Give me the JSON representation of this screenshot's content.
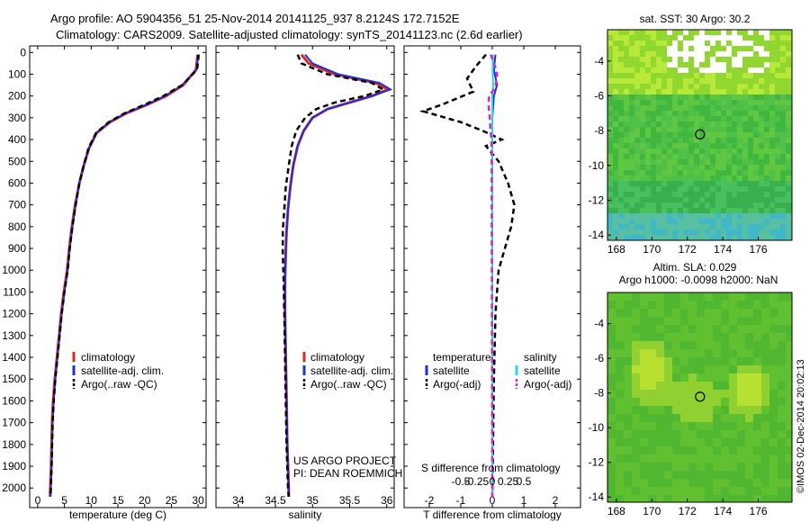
{
  "header": {
    "line1": "Argo profile: AO 5904356_51 25-Nov-2014 20141125_937 8.2124S 172.7152E",
    "line2": "Climatology: CARS2009. Satellite-adjusted climatology: synTS_20141123.nc (2.6d earlier)"
  },
  "colors": {
    "climatology": "#e8241c",
    "satellite": "#1830e0",
    "argo": "#000000",
    "sat_diff_s": "#20d8e8",
    "argo_diff_s": "#e020d0"
  },
  "chart_data": [
    {
      "type": "line",
      "name": "temperature-profile",
      "xlabel": "temperature (deg C)",
      "ylabel": "",
      "xlim": [
        -1.5,
        31.5
      ],
      "ylim": [
        2080,
        0
      ],
      "xticks": [
        "0",
        "5",
        "10",
        "15",
        "20",
        "25",
        "30"
      ],
      "yticks": [
        "0",
        "100",
        "200",
        "300",
        "400",
        "500",
        "600",
        "700",
        "800",
        "900",
        "1000",
        "1100",
        "1200",
        "1300",
        "1400",
        "1500",
        "1600",
        "1700",
        "1800",
        "1900",
        "2000"
      ],
      "series": [
        {
          "name": "climatology",
          "x": [
            29.9,
            29.8,
            29.6,
            27.2,
            24.0,
            20.5,
            16.5,
            13.5,
            11.0,
            9.6,
            8.6,
            7.8,
            7.0,
            6.4,
            5.9,
            5.5,
            4.9,
            4.4,
            4.0,
            3.6,
            3.2,
            2.9,
            2.7,
            2.6,
            2.5,
            2.3
          ],
          "y": [
            10,
            40,
            80,
            150,
            200,
            240,
            280,
            320,
            370,
            440,
            520,
            600,
            700,
            800,
            900,
            1000,
            1100,
            1200,
            1300,
            1400,
            1500,
            1600,
            1700,
            1800,
            1900,
            2040
          ]
        },
        {
          "name": "satellite-adj. clim.",
          "x": [
            30.0,
            29.9,
            29.7,
            27.0,
            23.8,
            20.3,
            16.4,
            13.4,
            11.0,
            9.6,
            8.6,
            7.8,
            7.1,
            6.5,
            6.0,
            5.6,
            5.0,
            4.5,
            4.1,
            3.7,
            3.3,
            3.0,
            2.8,
            2.7,
            2.6,
            2.4
          ],
          "y": [
            10,
            40,
            80,
            150,
            200,
            240,
            280,
            320,
            370,
            440,
            520,
            600,
            700,
            800,
            900,
            1000,
            1100,
            1200,
            1300,
            1400,
            1500,
            1600,
            1700,
            1800,
            1900,
            2040
          ]
        },
        {
          "name": "Argo(..raw -QC)",
          "x": [
            30.1,
            30.0,
            29.8,
            27.0,
            23.5,
            20.0,
            16.2,
            13.3,
            10.9,
            9.5,
            8.6,
            7.8,
            7.1,
            6.5,
            6.0,
            5.6,
            5.0,
            4.5,
            4.1,
            3.7,
            3.3,
            3.0,
            2.8,
            2.7,
            2.6,
            2.4
          ],
          "y": [
            10,
            40,
            80,
            150,
            200,
            240,
            280,
            320,
            370,
            440,
            520,
            600,
            700,
            800,
            900,
            1000,
            1100,
            1200,
            1300,
            1400,
            1500,
            1600,
            1700,
            1800,
            1900,
            2040
          ]
        }
      ],
      "legend": [
        "climatology",
        "satellite-adj. clim.",
        "Argo(..raw -QC)"
      ]
    },
    {
      "type": "line",
      "name": "salinity-profile",
      "xlabel": "salinity",
      "xlim": [
        33.7,
        36.1
      ],
      "ylim": [
        2080,
        0
      ],
      "xticks": [
        "34",
        "34.5",
        "35",
        "35.5",
        "36"
      ],
      "series": [
        {
          "name": "climatology",
          "x": [
            34.85,
            34.95,
            35.3,
            35.85,
            36.02,
            35.8,
            35.5,
            35.2,
            35.0,
            34.88,
            34.8,
            34.74,
            34.7,
            34.67,
            34.65,
            34.64,
            34.63,
            34.63,
            34.64,
            34.65,
            34.66,
            34.67,
            34.68,
            34.68
          ],
          "y": [
            10,
            50,
            100,
            140,
            170,
            200,
            230,
            260,
            300,
            360,
            430,
            520,
            620,
            720,
            820,
            920,
            1040,
            1200,
            1400,
            1600,
            1800,
            1900,
            2000,
            2040
          ]
        },
        {
          "name": "satellite-adj. clim.",
          "x": [
            34.9,
            35.0,
            35.35,
            35.9,
            36.05,
            35.8,
            35.5,
            35.2,
            35.0,
            34.88,
            34.8,
            34.74,
            34.7,
            34.67,
            34.65,
            34.64,
            34.63,
            34.63,
            34.64,
            34.65,
            34.66,
            34.67,
            34.68,
            34.68
          ],
          "y": [
            10,
            50,
            100,
            140,
            170,
            200,
            230,
            260,
            300,
            360,
            430,
            520,
            620,
            720,
            820,
            920,
            1040,
            1200,
            1400,
            1600,
            1800,
            1900,
            2000,
            2040
          ]
        },
        {
          "name": "Argo(..raw -QC)",
          "x": [
            34.8,
            34.85,
            35.2,
            35.8,
            35.95,
            35.7,
            35.3,
            35.05,
            34.9,
            34.78,
            34.72,
            34.68,
            34.64,
            34.62,
            34.6,
            34.6,
            34.61,
            34.62,
            34.63,
            34.64,
            34.65,
            34.66,
            34.67,
            34.68
          ],
          "y": [
            10,
            50,
            100,
            140,
            170,
            200,
            230,
            260,
            300,
            360,
            430,
            520,
            620,
            720,
            820,
            920,
            1040,
            1200,
            1400,
            1600,
            1800,
            1900,
            2000,
            2040
          ]
        }
      ],
      "legend": [
        "climatology",
        "satellite-adj. clim.",
        "Argo(..raw -QC)"
      ],
      "annotation": [
        "US ARGO PROJECT",
        "PI: DEAN ROEMMICH"
      ]
    },
    {
      "type": "line",
      "name": "difference-from-climatology",
      "xlabel": "T difference from climatology",
      "x2label": "S difference from climatology",
      "xlim": [
        -2.8,
        2.8
      ],
      "ylim": [
        2080,
        0
      ],
      "xticks": [
        "-2",
        "-1",
        "0",
        "1",
        "2"
      ],
      "x2ticks": [
        "-0.5",
        "-0.25",
        "0",
        "0.25",
        "0.5"
      ],
      "legend_titles": [
        "temperature",
        "salinity"
      ],
      "legend": [
        "satellite",
        "Argo(-adj)",
        "satellite",
        "Argo(-adj)"
      ],
      "series": [
        {
          "name": "T satellite",
          "x": [
            0.1,
            0.05,
            0.15,
            0.05,
            0.0,
            0.0,
            0.0,
            0.0,
            0.0,
            0.0,
            0.0,
            0.0,
            0.0
          ],
          "y": [
            10,
            80,
            150,
            200,
            300,
            400,
            600,
            800,
            1000,
            1200,
            1500,
            1800,
            2040
          ]
        },
        {
          "name": "T Argo(-adj)",
          "x": [
            -0.2,
            -0.5,
            -0.8,
            -0.6,
            -1.6,
            -2.2,
            -1.0,
            -0.3,
            0.3,
            -0.2,
            0.2,
            0.5,
            0.7,
            0.6,
            0.4,
            0.2,
            0.1,
            0.05,
            0.0
          ],
          "y": [
            10,
            60,
            120,
            180,
            240,
            270,
            320,
            360,
            400,
            430,
            500,
            600,
            700,
            800,
            900,
            1000,
            1200,
            1500,
            2040
          ]
        },
        {
          "name": "S satellite",
          "x": [
            0.02,
            0.01,
            0.03,
            0.0,
            0.0,
            0.0,
            0.0,
            0.0,
            0.0,
            0.0,
            0.0
          ],
          "y": [
            10,
            80,
            150,
            200,
            300,
            400,
            600,
            800,
            1200,
            1600,
            2040
          ]
        },
        {
          "name": "S Argo(-adj)",
          "x": [
            -0.05,
            0.08,
            0.15,
            0.1,
            -0.1,
            -0.12,
            -0.08,
            -0.06,
            -0.03,
            -0.02,
            0.0
          ],
          "y": [
            10,
            60,
            100,
            160,
            200,
            240,
            300,
            350,
            400,
            450,
            2040
          ]
        }
      ]
    },
    {
      "type": "heatmap",
      "name": "sat-sst-map",
      "title": "sat. SST: 30 Argo: 30.2",
      "xticks": [
        "168",
        "170",
        "172",
        "174",
        "176"
      ],
      "yticks": [
        "-4",
        "-6",
        "-8",
        "-10",
        "-12",
        "-14"
      ],
      "argo_position": [
        172.7152,
        -8.2124
      ]
    },
    {
      "type": "heatmap",
      "name": "altim-sla-map",
      "title": "Altim. SLA: 0.029",
      "subtitle": "Argo h1000: -0.0098 h2000: NaN",
      "xticks": [
        "168",
        "170",
        "172",
        "174",
        "176"
      ],
      "yticks": [
        "-4",
        "-6",
        "-8",
        "-10",
        "-12",
        "-14"
      ],
      "argo_position": [
        172.7152,
        -8.2124
      ]
    }
  ],
  "footer": {
    "credit": "©IMOS 02-Dec-2014 20:02:13"
  }
}
